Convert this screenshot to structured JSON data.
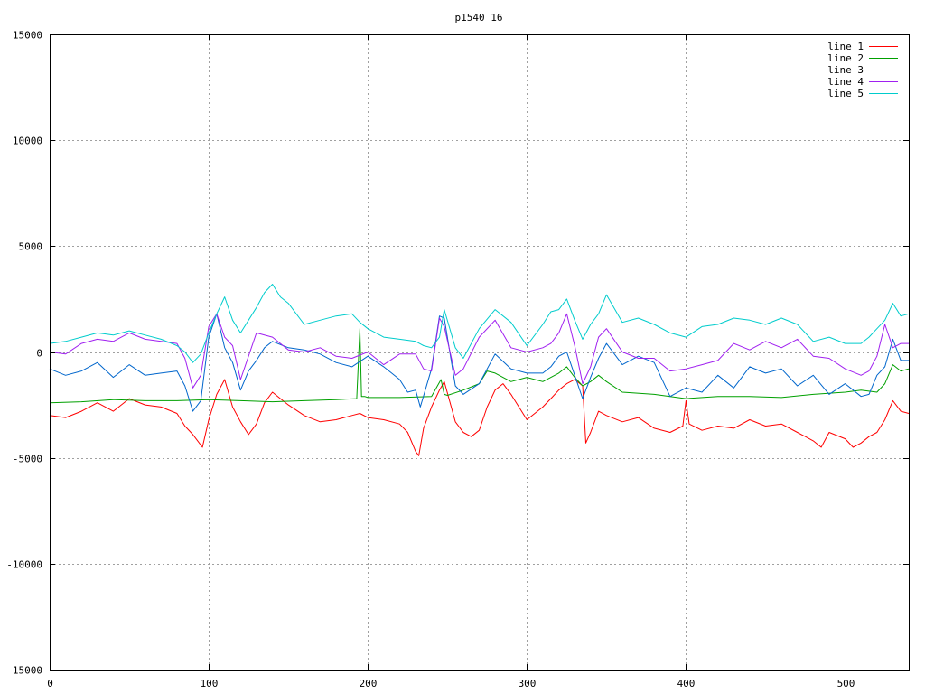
{
  "chart_data": {
    "type": "line",
    "title": "p1540_16",
    "xlabel": "",
    "ylabel": "",
    "xlim": [
      0,
      540
    ],
    "ylim": [
      -15000,
      15000
    ],
    "x_ticks": [
      0,
      100,
      200,
      300,
      400,
      500
    ],
    "y_ticks": [
      -15000,
      -10000,
      -5000,
      0,
      5000,
      10000,
      15000
    ],
    "grid": true,
    "legend_position": "top-right",
    "series": [
      {
        "name": "line 1",
        "color": "#ff0000",
        "x": [
          0,
          10,
          20,
          30,
          40,
          50,
          60,
          70,
          80,
          85,
          90,
          93,
          96,
          100,
          105,
          110,
          115,
          120,
          125,
          130,
          135,
          140,
          145,
          150,
          160,
          170,
          180,
          190,
          195,
          200,
          210,
          220,
          225,
          230,
          232,
          235,
          240,
          245,
          248,
          255,
          260,
          265,
          270,
          275,
          280,
          285,
          290,
          300,
          310,
          315,
          320,
          325,
          330,
          335,
          337,
          340,
          345,
          350,
          360,
          370,
          380,
          390,
          398,
          400,
          402,
          410,
          420,
          430,
          440,
          450,
          460,
          470,
          480,
          485,
          490,
          500,
          505,
          510,
          515,
          520,
          525,
          530,
          535,
          540
        ],
        "values": [
          -3000,
          -3100,
          -2800,
          -2400,
          -2800,
          -2200,
          -2500,
          -2600,
          -2900,
          -3500,
          -3900,
          -4200,
          -4500,
          -3200,
          -2000,
          -1300,
          -2600,
          -3300,
          -3900,
          -3400,
          -2400,
          -1900,
          -2200,
          -2500,
          -3000,
          -3300,
          -3200,
          -3000,
          -2900,
          -3100,
          -3200,
          -3400,
          -3800,
          -4700,
          -4900,
          -3600,
          -2600,
          -1800,
          -1400,
          -3300,
          -3800,
          -4000,
          -3700,
          -2600,
          -1800,
          -1500,
          -2000,
          -3200,
          -2600,
          -2200,
          -1800,
          -1500,
          -1300,
          -1600,
          -4300,
          -3800,
          -2800,
          -3000,
          -3300,
          -3100,
          -3600,
          -3800,
          -3500,
          -2300,
          -3400,
          -3700,
          -3500,
          -3600,
          -3200,
          -3500,
          -3400,
          -3800,
          -4200,
          -4500,
          -3800,
          -4100,
          -4500,
          -4300,
          -4000,
          -3800,
          -3200,
          -2300,
          -2800,
          -2900
        ]
      },
      {
        "name": "line 2",
        "color": "#00a000",
        "x": [
          0,
          20,
          40,
          60,
          80,
          100,
          120,
          140,
          160,
          180,
          193,
          195,
          196,
          198,
          200,
          220,
          240,
          246,
          248,
          250,
          260,
          270,
          275,
          280,
          290,
          300,
          310,
          320,
          325,
          330,
          335,
          340,
          345,
          350,
          360,
          380,
          400,
          420,
          440,
          460,
          480,
          500,
          510,
          520,
          525,
          530,
          535,
          540
        ],
        "values": [
          -2400,
          -2350,
          -2250,
          -2300,
          -2300,
          -2250,
          -2300,
          -2350,
          -2300,
          -2250,
          -2200,
          1100,
          -2100,
          -2100,
          -2150,
          -2150,
          -2100,
          -1300,
          -2000,
          -2050,
          -1800,
          -1500,
          -900,
          -1000,
          -1400,
          -1200,
          -1400,
          -1000,
          -700,
          -1200,
          -1600,
          -1400,
          -1100,
          -1400,
          -1900,
          -2000,
          -2200,
          -2100,
          -2100,
          -2150,
          -2000,
          -1900,
          -1800,
          -1900,
          -1500,
          -600,
          -900,
          -800
        ]
      },
      {
        "name": "line 3",
        "color": "#0066cc",
        "x": [
          0,
          10,
          20,
          30,
          40,
          50,
          60,
          70,
          80,
          85,
          90,
          95,
          100,
          105,
          110,
          115,
          120,
          125,
          130,
          135,
          140,
          150,
          160,
          170,
          180,
          190,
          200,
          210,
          220,
          225,
          230,
          233,
          240,
          245,
          248,
          255,
          260,
          270,
          280,
          290,
          300,
          310,
          315,
          320,
          325,
          330,
          335,
          340,
          345,
          350,
          360,
          370,
          380,
          390,
          400,
          410,
          420,
          430,
          440,
          450,
          460,
          470,
          480,
          490,
          500,
          510,
          515,
          520,
          525,
          530,
          535,
          540
        ],
        "values": [
          -800,
          -1100,
          -900,
          -500,
          -1200,
          -600,
          -1100,
          -1000,
          -900,
          -1600,
          -2800,
          -2300,
          700,
          1800,
          200,
          -500,
          -1800,
          -900,
          -400,
          200,
          500,
          200,
          100,
          -100,
          -500,
          -700,
          -200,
          -700,
          -1300,
          -1900,
          -1800,
          -2600,
          -800,
          1700,
          1600,
          -1600,
          -2000,
          -1500,
          -100,
          -800,
          -1000,
          -1000,
          -700,
          -200,
          0,
          -1100,
          -2200,
          -1200,
          -300,
          400,
          -600,
          -200,
          -500,
          -2100,
          -1700,
          -1900,
          -1100,
          -1700,
          -700,
          -1000,
          -800,
          -1600,
          -1100,
          -2000,
          -1500,
          -2100,
          -2000,
          -1100,
          -700,
          600,
          -400,
          -400
        ]
      },
      {
        "name": "line 4",
        "color": "#a020f0",
        "x": [
          0,
          10,
          20,
          30,
          40,
          50,
          60,
          70,
          80,
          85,
          90,
          95,
          100,
          105,
          110,
          115,
          120,
          130,
          140,
          150,
          160,
          170,
          180,
          190,
          200,
          210,
          220,
          230,
          235,
          240,
          245,
          248,
          255,
          260,
          270,
          280,
          290,
          300,
          310,
          315,
          320,
          325,
          330,
          335,
          340,
          345,
          350,
          360,
          370,
          380,
          390,
          400,
          410,
          420,
          430,
          440,
          450,
          460,
          470,
          480,
          490,
          500,
          510,
          515,
          520,
          525,
          530,
          535,
          540
        ],
        "values": [
          0,
          -100,
          400,
          600,
          500,
          900,
          600,
          500,
          400,
          -300,
          -1700,
          -1100,
          1200,
          1800,
          700,
          300,
          -1300,
          900,
          700,
          100,
          0,
          200,
          -200,
          -300,
          0,
          -600,
          -100,
          -100,
          -800,
          -900,
          1600,
          1200,
          -1100,
          -800,
          700,
          1500,
          200,
          0,
          200,
          400,
          900,
          1800,
          300,
          -1500,
          -700,
          700,
          1100,
          0,
          -300,
          -300,
          -900,
          -800,
          -600,
          -400,
          400,
          100,
          500,
          200,
          600,
          -200,
          -300,
          -800,
          -1100,
          -900,
          -200,
          1300,
          200,
          400,
          400
        ]
      },
      {
        "name": "line 5",
        "color": "#00cccc",
        "x": [
          0,
          10,
          20,
          30,
          40,
          50,
          60,
          70,
          80,
          85,
          90,
          95,
          100,
          105,
          110,
          115,
          120,
          130,
          135,
          140,
          145,
          150,
          160,
          170,
          180,
          190,
          195,
          200,
          210,
          220,
          230,
          235,
          240,
          245,
          248,
          255,
          260,
          270,
          280,
          290,
          300,
          310,
          315,
          320,
          325,
          330,
          335,
          340,
          345,
          350,
          360,
          370,
          380,
          390,
          400,
          410,
          420,
          430,
          440,
          450,
          460,
          470,
          480,
          490,
          500,
          510,
          515,
          520,
          525,
          530,
          535,
          540
        ],
        "values": [
          400,
          500,
          700,
          900,
          800,
          1000,
          800,
          600,
          300,
          0,
          -500,
          -100,
          900,
          1800,
          2600,
          1500,
          900,
          2100,
          2800,
          3200,
          2600,
          2300,
          1300,
          1500,
          1700,
          1800,
          1400,
          1100,
          700,
          600,
          500,
          300,
          200,
          700,
          2000,
          200,
          -300,
          1100,
          2000,
          1400,
          300,
          1300,
          1900,
          2000,
          2500,
          1500,
          600,
          1300,
          1800,
          2700,
          1400,
          1600,
          1300,
          900,
          700,
          1200,
          1300,
          1600,
          1500,
          1300,
          1600,
          1300,
          500,
          700,
          400,
          400,
          700,
          1100,
          1500,
          2300,
          1700,
          1800
        ]
      }
    ]
  }
}
